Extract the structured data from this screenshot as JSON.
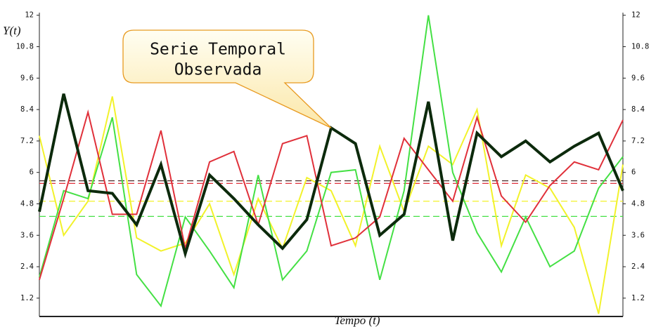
{
  "chart_data": {
    "type": "line",
    "y_label": "Y(t)",
    "x_label": "Tempo (t)",
    "xlim": [
      0,
      24
    ],
    "ylim": [
      0.5,
      12.1
    ],
    "y2lim": [
      0.5,
      12.1
    ],
    "yticks": [
      1.2,
      2.4,
      3.6,
      4.8,
      6,
      7.2,
      8.4,
      9.6,
      10.8,
      12
    ],
    "y2ticks": [
      1.2,
      2.4,
      3.6,
      4.8,
      6,
      7.2,
      8.4,
      9.6,
      10.8,
      12
    ],
    "x": [
      0,
      1,
      2,
      3,
      4,
      5,
      6,
      7,
      8,
      9,
      10,
      11,
      12,
      13,
      14,
      15,
      16,
      17,
      18,
      19,
      20,
      21,
      22,
      23,
      24
    ],
    "series": [
      {
        "color": "#f2f22a",
        "width": 2,
        "values": [
          7.4,
          3.6,
          4.9,
          8.9,
          3.5,
          3.0,
          3.3,
          4.8,
          2.1,
          5.0,
          3.1,
          5.8,
          5.3,
          3.2,
          7.0,
          4.5,
          7.0,
          6.3,
          8.4,
          3.2,
          5.9,
          5.4,
          3.9,
          0.6,
          6.3
        ]
      },
      {
        "color": "#44e044",
        "width": 2,
        "values": [
          2.0,
          5.3,
          5.0,
          8.1,
          2.1,
          0.9,
          4.3,
          3.0,
          1.6,
          5.9,
          1.9,
          3.0,
          6.0,
          6.1,
          1.9,
          5.3,
          12.0,
          6.0,
          3.7,
          2.2,
          4.3,
          2.4,
          3.0,
          5.4,
          6.6
        ]
      },
      {
        "color": "#e0303a",
        "width": 2,
        "values": [
          1.9,
          5.0,
          8.3,
          4.4,
          4.4,
          7.6,
          3.1,
          6.4,
          6.8,
          4.0,
          7.1,
          7.4,
          3.2,
          3.5,
          4.3,
          7.3,
          6.1,
          4.9,
          8.1,
          5.1,
          4.1,
          5.5,
          6.4,
          6.1,
          8.0
        ]
      },
      {
        "color": "#0c2a0c",
        "width": 4,
        "values": [
          4.5,
          9.0,
          5.3,
          5.2,
          4.0,
          6.3,
          2.9,
          5.9,
          5.0,
          4.0,
          3.1,
          4.2,
          7.7,
          7.1,
          3.6,
          4.4,
          8.7,
          3.4,
          7.5,
          6.6,
          7.2,
          6.4,
          7.0,
          7.5,
          5.3
        ]
      }
    ],
    "reference_lines": [
      {
        "value": 5.68,
        "color": "#4a2a2a"
      },
      {
        "value": 5.58,
        "color": "#e0303a"
      },
      {
        "value": 4.9,
        "color": "#f2f22a"
      },
      {
        "value": 4.32,
        "color": "#44e044"
      }
    ],
    "annotation": {
      "lines": [
        "Serie Temporal",
        "Observada"
      ],
      "x": 12,
      "y": 7.7
    }
  }
}
